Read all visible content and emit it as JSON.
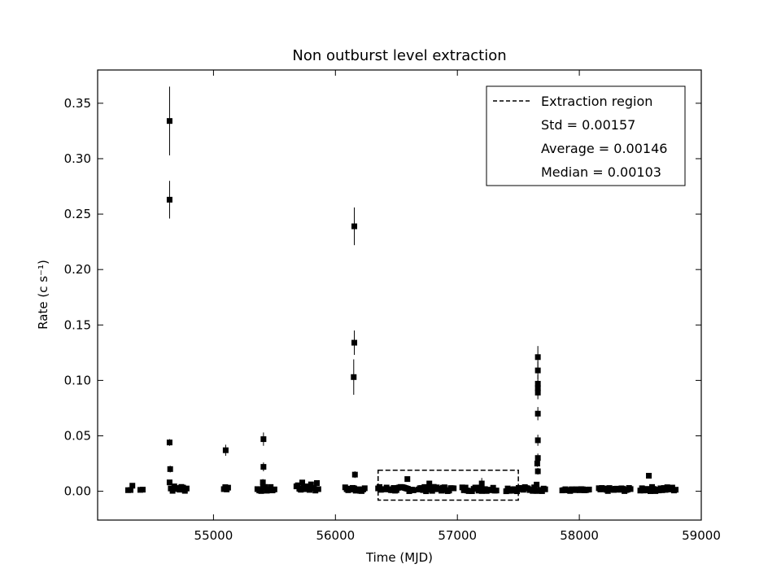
{
  "chart_data": {
    "type": "scatter",
    "title": "Non outburst level extraction",
    "xlabel": "Time (MJD)",
    "ylabel": "Rate (c s⁻¹)",
    "xlim": [
      54050,
      59000
    ],
    "ylim": [
      -0.026,
      0.38
    ],
    "xticks": [
      55000,
      56000,
      57000,
      58000,
      59000
    ],
    "yticks": [
      0.0,
      0.05,
      0.1,
      0.15,
      0.2,
      0.25,
      0.3,
      0.35
    ],
    "ytick_labels": [
      "0.00",
      "0.05",
      "0.10",
      "0.15",
      "0.20",
      "0.25",
      "0.30",
      "0.35"
    ],
    "grid": false,
    "legend": {
      "position": "top-right",
      "entries": [
        {
          "label": "Extraction region",
          "style": "dashed"
        },
        {
          "label": "Std = 0.00157",
          "style": "none"
        },
        {
          "label": "Average = 0.00146",
          "style": "none"
        },
        {
          "label": "Median = 0.00103",
          "style": "none"
        }
      ]
    },
    "extraction_region": {
      "x": [
        56350,
        57500
      ],
      "y": [
        -0.008,
        0.019
      ]
    },
    "marker_color": "#000000",
    "points": [
      {
        "x": 54640,
        "y": 0.334,
        "err": 0.031
      },
      {
        "x": 54640,
        "y": 0.263,
        "err": 0.017
      },
      {
        "x": 54640,
        "y": 0.044,
        "err": 0.003
      },
      {
        "x": 54645,
        "y": 0.02,
        "err": 0.003
      },
      {
        "x": 54640,
        "y": 0.008,
        "err": 0.002
      },
      {
        "x": 55100,
        "y": 0.037,
        "err": 0.005
      },
      {
        "x": 55410,
        "y": 0.047,
        "err": 0.006
      },
      {
        "x": 55410,
        "y": 0.022,
        "err": 0.004
      },
      {
        "x": 55405,
        "y": 0.008,
        "err": 0.003
      },
      {
        "x": 56155,
        "y": 0.239,
        "err": 0.017
      },
      {
        "x": 56155,
        "y": 0.134,
        "err": 0.011
      },
      {
        "x": 56150,
        "y": 0.103,
        "err": 0.016
      },
      {
        "x": 56160,
        "y": 0.015,
        "err": 0.003
      },
      {
        "x": 56590,
        "y": 0.011,
        "err": 0.002
      },
      {
        "x": 56770,
        "y": 0.007,
        "err": 0.002
      },
      {
        "x": 57200,
        "y": 0.007,
        "err": 0.005
      },
      {
        "x": 57660,
        "y": 0.121,
        "err": 0.01
      },
      {
        "x": 57660,
        "y": 0.109,
        "err": 0.008
      },
      {
        "x": 57660,
        "y": 0.097,
        "err": 0.008
      },
      {
        "x": 57660,
        "y": 0.093,
        "err": 0.007
      },
      {
        "x": 57660,
        "y": 0.089,
        "err": 0.006
      },
      {
        "x": 57660,
        "y": 0.07,
        "err": 0.006
      },
      {
        "x": 57660,
        "y": 0.046,
        "err": 0.005
      },
      {
        "x": 57660,
        "y": 0.03,
        "err": 0.004
      },
      {
        "x": 57655,
        "y": 0.025,
        "err": 0.003
      },
      {
        "x": 57660,
        "y": 0.018,
        "err": 0.003
      },
      {
        "x": 57650,
        "y": 0.006,
        "err": 0.002
      },
      {
        "x": 58570,
        "y": 0.014,
        "err": 0.002
      }
    ],
    "baseline_clusters": [
      {
        "x_start": 54300,
        "x_end": 54320,
        "n": 2,
        "y_min": 0.0,
        "y_max": 0.002
      },
      {
        "x_start": 54335,
        "x_end": 54345,
        "n": 1,
        "y_min": 0.005,
        "y_max": 0.005
      },
      {
        "x_start": 54400,
        "x_end": 54420,
        "n": 2,
        "y_min": 0.001,
        "y_max": 0.002
      },
      {
        "x_start": 54650,
        "x_end": 54780,
        "n": 10,
        "y_min": 0.0,
        "y_max": 0.005
      },
      {
        "x_start": 55085,
        "x_end": 55120,
        "n": 4,
        "y_min": 0.001,
        "y_max": 0.005
      },
      {
        "x_start": 55360,
        "x_end": 55500,
        "n": 10,
        "y_min": 0.0,
        "y_max": 0.004
      },
      {
        "x_start": 55680,
        "x_end": 55860,
        "n": 16,
        "y_min": 0.0,
        "y_max": 0.008
      },
      {
        "x_start": 56080,
        "x_end": 56240,
        "n": 14,
        "y_min": 0.0,
        "y_max": 0.004
      },
      {
        "x_start": 56350,
        "x_end": 56640,
        "n": 26,
        "y_min": 0.0,
        "y_max": 0.004
      },
      {
        "x_start": 56680,
        "x_end": 56970,
        "n": 24,
        "y_min": 0.0,
        "y_max": 0.004
      },
      {
        "x_start": 57040,
        "x_end": 57320,
        "n": 22,
        "y_min": 0.0,
        "y_max": 0.004
      },
      {
        "x_start": 57400,
        "x_end": 57720,
        "n": 26,
        "y_min": 0.0,
        "y_max": 0.004
      },
      {
        "x_start": 57860,
        "x_end": 58080,
        "n": 18,
        "y_min": 0.0,
        "y_max": 0.002
      },
      {
        "x_start": 58160,
        "x_end": 58420,
        "n": 22,
        "y_min": 0.0,
        "y_max": 0.003
      },
      {
        "x_start": 58500,
        "x_end": 58790,
        "n": 22,
        "y_min": 0.0,
        "y_max": 0.004
      }
    ]
  }
}
